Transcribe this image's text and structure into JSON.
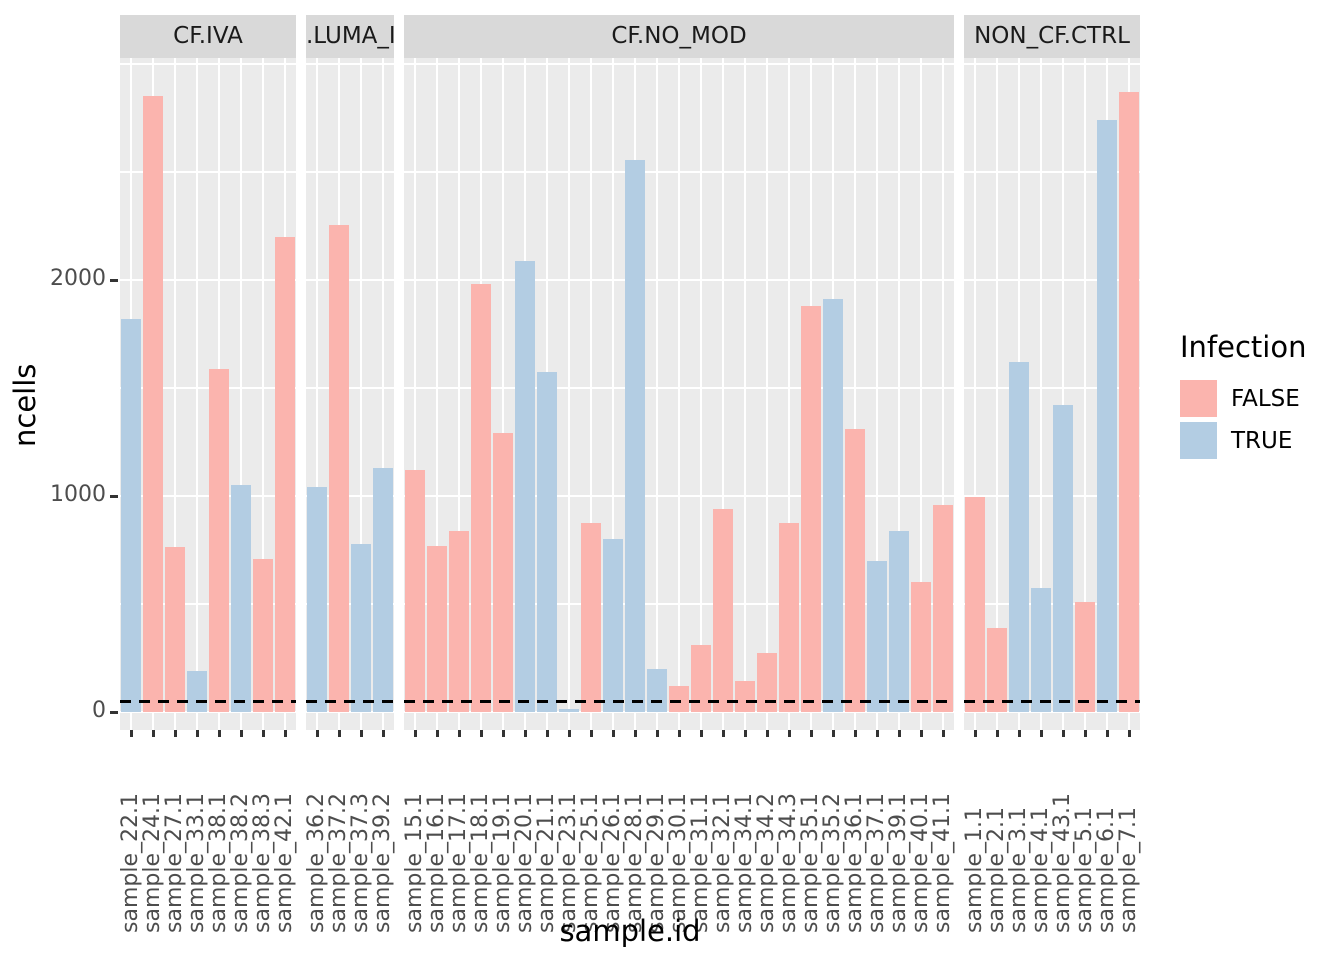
{
  "chart_data": {
    "type": "bar",
    "title": "",
    "xlabel": "sample.id",
    "ylabel": "ncells",
    "ylim": [
      0,
      3019
    ],
    "yticks": [
      0,
      1000,
      2000
    ],
    "grid_values_minor": [
      500,
      1500,
      2500
    ],
    "grid_values_major": [
      0,
      1000,
      2000,
      3000
    ],
    "grid": "on",
    "threshold_line": {
      "value": 50,
      "style": "dashed",
      "color": "#000000"
    },
    "legend": {
      "title": "Infection",
      "position": "right",
      "entries": [
        {
          "label": "FALSE",
          "color": "#FBB4AE"
        },
        {
          "label": "TRUE",
          "color": "#B3CDE3"
        }
      ]
    },
    "facets": [
      {
        "label": "CF.IVA",
        "samples": [
          {
            "id": "sample_22.1",
            "infection": "TRUE",
            "ncells": 1820
          },
          {
            "id": "sample_24.1",
            "infection": "FALSE",
            "ncells": 2850
          },
          {
            "id": "sample_27.1",
            "infection": "FALSE",
            "ncells": 765
          },
          {
            "id": "sample_33.1",
            "infection": "TRUE",
            "ncells": 190
          },
          {
            "id": "sample_38.1",
            "infection": "FALSE",
            "ncells": 1590
          },
          {
            "id": "sample_38.2",
            "infection": "TRUE",
            "ncells": 1050
          },
          {
            "id": "sample_38.3",
            "infection": "FALSE",
            "ncells": 710
          },
          {
            "id": "sample_42.1",
            "infection": "FALSE",
            "ncells": 2200
          }
        ]
      },
      {
        "label": ".LUMA_IV",
        "samples": [
          {
            "id": "sample_36.2",
            "infection": "TRUE",
            "ncells": 1040
          },
          {
            "id": "sample_37.2",
            "infection": "FALSE",
            "ncells": 2255
          },
          {
            "id": "sample_37.3",
            "infection": "TRUE",
            "ncells": 780
          },
          {
            "id": "sample_39.2",
            "infection": "TRUE",
            "ncells": 1130
          }
        ]
      },
      {
        "label": "CF.NO_MOD",
        "samples": [
          {
            "id": "sample_15.1",
            "infection": "FALSE",
            "ncells": 1120
          },
          {
            "id": "sample_16.1",
            "infection": "FALSE",
            "ncells": 770
          },
          {
            "id": "sample_17.1",
            "infection": "FALSE",
            "ncells": 840
          },
          {
            "id": "sample_18.1",
            "infection": "FALSE",
            "ncells": 1980
          },
          {
            "id": "sample_19.1",
            "infection": "FALSE",
            "ncells": 1290
          },
          {
            "id": "sample_20.1",
            "infection": "TRUE",
            "ncells": 2090
          },
          {
            "id": "sample_21.1",
            "infection": "TRUE",
            "ncells": 1575
          },
          {
            "id": "sample_23.1",
            "infection": "TRUE",
            "ncells": 15
          },
          {
            "id": "sample_25.1",
            "infection": "FALSE",
            "ncells": 875
          },
          {
            "id": "sample_26.1",
            "infection": "TRUE",
            "ncells": 800
          },
          {
            "id": "sample_28.1",
            "infection": "TRUE",
            "ncells": 2555
          },
          {
            "id": "sample_29.1",
            "infection": "TRUE",
            "ncells": 200
          },
          {
            "id": "sample_30.1",
            "infection": "FALSE",
            "ncells": 120
          },
          {
            "id": "sample_31.1",
            "infection": "FALSE",
            "ncells": 310
          },
          {
            "id": "sample_32.1",
            "infection": "FALSE",
            "ncells": 940
          },
          {
            "id": "sample_34.1",
            "infection": "FALSE",
            "ncells": 145
          },
          {
            "id": "sample_34.2",
            "infection": "FALSE",
            "ncells": 275
          },
          {
            "id": "sample_34.3",
            "infection": "FALSE",
            "ncells": 875
          },
          {
            "id": "sample_35.1",
            "infection": "FALSE",
            "ncells": 1880
          },
          {
            "id": "sample_35.2",
            "infection": "TRUE",
            "ncells": 1910
          },
          {
            "id": "sample_36.1",
            "infection": "FALSE",
            "ncells": 1310
          },
          {
            "id": "sample_37.1",
            "infection": "TRUE",
            "ncells": 700
          },
          {
            "id": "sample_39.1",
            "infection": "TRUE",
            "ncells": 840
          },
          {
            "id": "sample_40.1",
            "infection": "FALSE",
            "ncells": 600
          },
          {
            "id": "sample_41.1",
            "infection": "FALSE",
            "ncells": 960
          }
        ]
      },
      {
        "label": "NON_CF.CTRL",
        "samples": [
          {
            "id": "sample_1.1",
            "infection": "FALSE",
            "ncells": 995
          },
          {
            "id": "sample_2.1",
            "infection": "FALSE",
            "ncells": 390
          },
          {
            "id": "sample_3.1",
            "infection": "TRUE",
            "ncells": 1620
          },
          {
            "id": "sample_4.1",
            "infection": "TRUE",
            "ncells": 575
          },
          {
            "id": "sample_43.1",
            "infection": "TRUE",
            "ncells": 1420
          },
          {
            "id": "sample_5.1",
            "infection": "FALSE",
            "ncells": 510
          },
          {
            "id": "sample_6.1",
            "infection": "TRUE",
            "ncells": 2740
          },
          {
            "id": "sample_7.1",
            "infection": "FALSE",
            "ncells": 2870
          }
        ]
      }
    ]
  },
  "colors": {
    "panel_bg": "#EBEBEB",
    "strip_bg": "#D9D9D9",
    "gridline": "#FFFFFF",
    "axis_text": "#4D4D4D",
    "tick_mark": "#333333",
    "false_fill": "#FBB4AE",
    "true_fill": "#B3CDE3"
  }
}
